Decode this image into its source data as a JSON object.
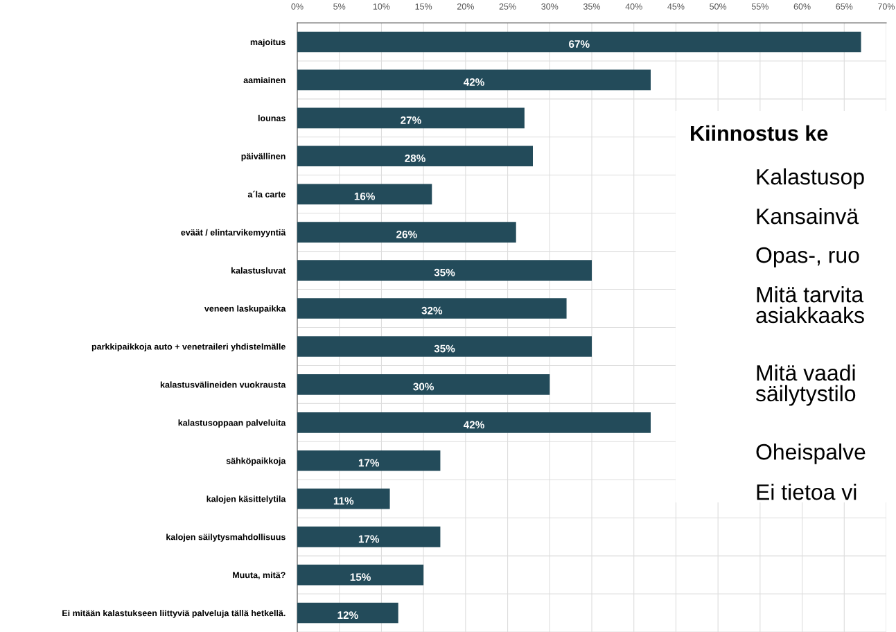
{
  "chart_data": {
    "type": "bar",
    "orientation": "horizontal",
    "categories": [
      "majoitus",
      "aamiainen",
      "lounas",
      "päivällinen",
      "a´la carte",
      "eväät / elintarvikemyyntiä",
      "kalastusluvat",
      "veneen laskupaikka",
      "parkkipaikkoja auto + venetraileri yhdistelmälle",
      "kalastusvälineiden vuokrausta",
      "kalastusoppaan palveluita",
      "sähköpaikkoja",
      "kalojen käsittelytila",
      "kalojen säilytysmahdollisuus",
      "Muuta, mitä?",
      "Ei mitään kalastukseen liittyviä palveluja tällä hetkellä."
    ],
    "values": [
      67,
      42,
      27,
      28,
      16,
      26,
      35,
      32,
      35,
      30,
      42,
      17,
      11,
      17,
      15,
      12
    ],
    "value_labels": [
      "67%",
      "42%",
      "27%",
      "28%",
      "16%",
      "26%",
      "35%",
      "32%",
      "35%",
      "30%",
      "42%",
      "17%",
      "11%",
      "17%",
      "15%",
      "12%"
    ],
    "color": "#234b5a",
    "xlim": [
      0,
      70
    ],
    "xticks": [
      {
        "value": 0,
        "label": "0%"
      },
      {
        "value": 5,
        "label": "5%"
      },
      {
        "value": 10,
        "label": "10%"
      },
      {
        "value": 15,
        "label": "15%"
      },
      {
        "value": 20,
        "label": "20%"
      },
      {
        "value": 25,
        "label": "25%"
      },
      {
        "value": 30,
        "label": "30%"
      },
      {
        "value": 35,
        "label": "35%"
      },
      {
        "value": 40,
        "label": "40%"
      },
      {
        "value": 45,
        "label": "45%"
      },
      {
        "value": 50,
        "label": "50%"
      },
      {
        "value": 55,
        "label": "55%"
      },
      {
        "value": 60,
        "label": "60%"
      },
      {
        "value": 65,
        "label": "65%"
      },
      {
        "value": 70,
        "label": "70%"
      }
    ],
    "grid": true,
    "annotations": [
      "Kiinnostus ke",
      "Kalastusop",
      "Kansainvä",
      "Opas-, ruo",
      "Mitä tarvita\nasiakkaaks",
      "Mitä vaadi\nsäilytystilo",
      "Oheispalve",
      "Ei tietoa vi"
    ]
  }
}
